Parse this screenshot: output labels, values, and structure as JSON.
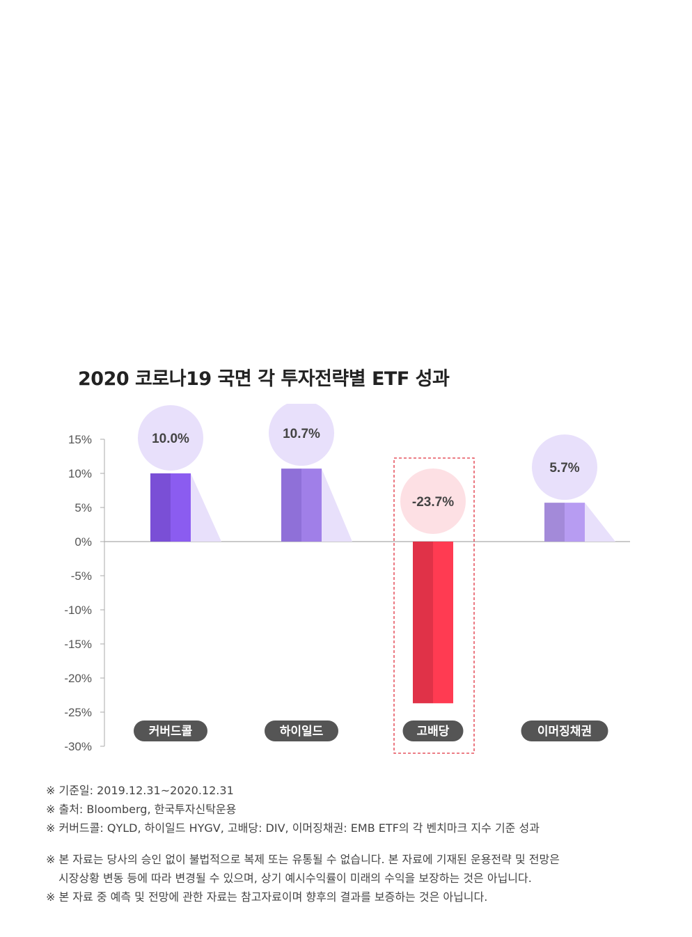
{
  "chart_data": {
    "type": "bar",
    "title": "2020 코로나19 국면 각 투자전략별 ETF 성과",
    "categories": [
      "커버드콜",
      "하이일드",
      "고배당",
      "이머징채권"
    ],
    "values": [
      10.0,
      10.7,
      -23.7,
      5.7
    ],
    "value_labels": [
      "10.0%",
      "10.7%",
      "-23.7%",
      "5.7%"
    ],
    "yticks": [
      "15%",
      "10%",
      "5%",
      "0%",
      "-5%",
      "-10%",
      "-15%",
      "-20%",
      "-25%",
      "-30%"
    ],
    "ylim": [
      -30,
      15
    ],
    "highlight_category": "고배당",
    "colors": {
      "bars": [
        "#8b5cf0",
        "#a07fe8",
        "#ff3b52",
        "#b79cf2"
      ],
      "bars_dark": [
        "#7a4fd6",
        "#8f70d8",
        "#e03248",
        "#a38ad9"
      ],
      "circles": [
        "#e8e0fb",
        "#e8e0fb",
        "#fde0e4",
        "#e8e0fb"
      ],
      "shadow": "#e8e0fb",
      "pill": "#555555",
      "highlight_border": "#e0303e",
      "axis": "#aaaaaa"
    }
  },
  "notes": {
    "line1": "※ 기준일: 2019.12.31~2020.12.31",
    "line2": "※  출처: Bloomberg, 한국투자신탁운용",
    "line3": "※  커버드콜: QYLD, 하이일드 HYGV, 고배당: DIV, 이머징채권: EMB ETF의 각 벤치마크 지수 기준 성과",
    "line4": "※ 본 자료는 당사의 승인 없이 불법적으로 복제 또는 유통될 수 없습니다. 본 자료에 기재된 운용전략 및 전망은",
    "line5": "시장상황 변동 등에 따라 변경될 수 있으며, 상기 예시수익률이 미래의 수익을 보장하는 것은 아닙니다.",
    "line6": "※ 본 자료 중 예측 및 전망에 관한 자료는 참고자료이며 향후의 결과를 보증하는 것은 아닙니다."
  }
}
